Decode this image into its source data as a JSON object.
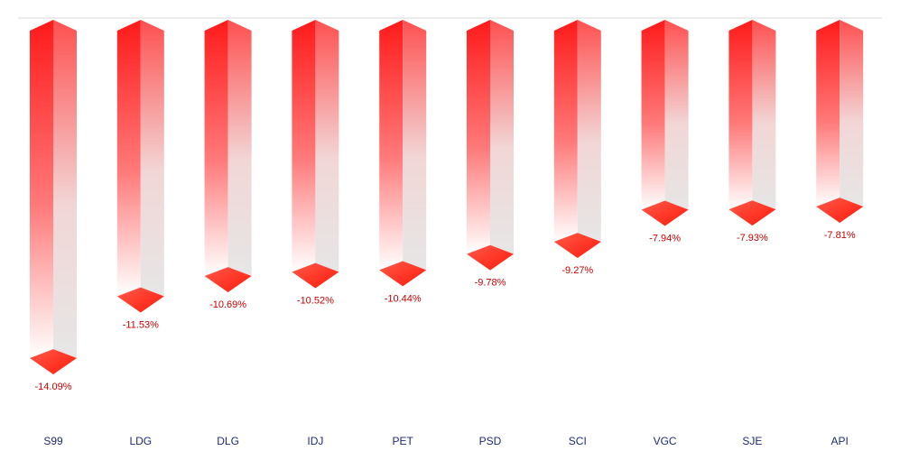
{
  "chart_data": {
    "type": "bar",
    "orientation": "vertical-negative",
    "style": "3d-gradient-column",
    "categories": [
      "S99",
      "LDG",
      "DLG",
      "IDJ",
      "PET",
      "PSD",
      "SCI",
      "VGC",
      "SJE",
      "API"
    ],
    "values": [
      -14.09,
      -11.53,
      -10.69,
      -10.52,
      -10.44,
      -9.78,
      -9.27,
      -7.94,
      -7.93,
      -7.81
    ],
    "data_labels": [
      "-14.09%",
      "-11.53%",
      "-10.69%",
      "-10.52%",
      "-10.44%",
      "-9.78%",
      "-9.27%",
      "-7.94%",
      "-7.93%",
      "-7.81%"
    ],
    "title": "",
    "xlabel": "",
    "ylabel": "",
    "ylim": [
      -14.09,
      0
    ],
    "grid": false,
    "legend": "none",
    "colors": {
      "bar_top": "#ff1a1a",
      "bar_fade": "#ffffff",
      "bar_side": "#e8e8e8",
      "cap": "#ff2a1a",
      "value_label": "#cc0000",
      "category_label": "#1f2a7a",
      "baseline": "#d9d9d9"
    }
  }
}
